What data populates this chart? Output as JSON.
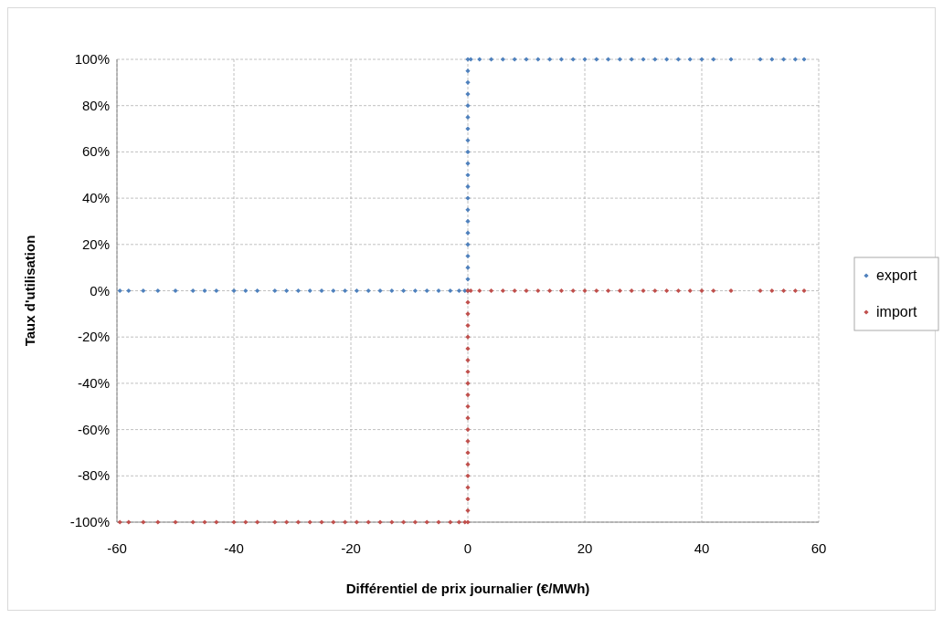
{
  "chart_data": {
    "type": "scatter",
    "xlabel": "Différentiel de prix journalier  (€/MWh)",
    "ylabel": "Taux d'utilisation",
    "xlim": [
      -60,
      60
    ],
    "xticks": [
      -60,
      -40,
      -20,
      0,
      20,
      40,
      60
    ],
    "ylim": [
      -100,
      100
    ],
    "yticks": [
      {
        "value": -100,
        "label": "-100%"
      },
      {
        "value": -80,
        "label": "-80%"
      },
      {
        "value": -60,
        "label": "-60%"
      },
      {
        "value": -40,
        "label": "-40%"
      },
      {
        "value": -20,
        "label": "-20%"
      },
      {
        "value": 0,
        "label": "0%"
      },
      {
        "value": 20,
        "label": "20%"
      },
      {
        "value": 40,
        "label": "40%"
      },
      {
        "value": 60,
        "label": "60%"
      },
      {
        "value": 80,
        "label": "80%"
      },
      {
        "value": 100,
        "label": "100%"
      }
    ],
    "grid": true,
    "legend": "right",
    "marker": "diamond",
    "series": [
      {
        "name": "export",
        "color": "#4f81bd",
        "x": [
          -59.5,
          -58,
          -55.5,
          -53,
          -50,
          -47,
          -45,
          -43,
          -40,
          -38,
          -36,
          -33,
          -31,
          -29,
          -27,
          -25,
          -23,
          -21,
          -19,
          -17,
          -15,
          -13,
          -11,
          -9,
          -7,
          -5,
          -3,
          -1.5,
          -0.5,
          0,
          0,
          0,
          0,
          0,
          0,
          0,
          0,
          0,
          0,
          0,
          0,
          0,
          0,
          0,
          0,
          0,
          0,
          0,
          0,
          0,
          0.5,
          2,
          4,
          6,
          8,
          10,
          12,
          14,
          16,
          18,
          20,
          22,
          24,
          26,
          28,
          30,
          32,
          34,
          36,
          38,
          40,
          42,
          45,
          50,
          52,
          54,
          56,
          57.5
        ],
        "values": [
          0,
          0,
          0,
          0,
          0,
          0,
          0,
          0,
          0,
          0,
          0,
          0,
          0,
          0,
          0,
          0,
          0,
          0,
          0,
          0,
          0,
          0,
          0,
          0,
          0,
          0,
          0,
          0,
          0,
          0,
          5,
          10,
          15,
          20,
          25,
          30,
          35,
          40,
          45,
          50,
          55,
          60,
          65,
          70,
          75,
          80,
          85,
          90,
          95,
          100,
          100,
          100,
          100,
          100,
          100,
          100,
          100,
          100,
          100,
          100,
          100,
          100,
          100,
          100,
          100,
          100,
          100,
          100,
          100,
          100,
          100,
          100,
          100,
          100,
          100,
          100,
          100,
          100
        ]
      },
      {
        "name": "import",
        "color": "#c0504d",
        "x": [
          -59.5,
          -58,
          -55.5,
          -53,
          -50,
          -47,
          -45,
          -43,
          -40,
          -38,
          -36,
          -33,
          -31,
          -29,
          -27,
          -25,
          -23,
          -21,
          -19,
          -17,
          -15,
          -13,
          -11,
          -9,
          -7,
          -5,
          -3,
          -1.5,
          -0.5,
          0,
          0,
          0,
          0,
          0,
          0,
          0,
          0,
          0,
          0,
          0,
          0,
          0,
          0,
          0,
          0,
          0,
          0,
          0,
          0,
          0,
          0.5,
          2,
          4,
          6,
          8,
          10,
          12,
          14,
          16,
          18,
          20,
          22,
          24,
          26,
          28,
          30,
          32,
          34,
          36,
          38,
          40,
          42,
          45,
          50,
          52,
          54,
          56,
          57.5
        ],
        "values": [
          -100,
          -100,
          -100,
          -100,
          -100,
          -100,
          -100,
          -100,
          -100,
          -100,
          -100,
          -100,
          -100,
          -100,
          -100,
          -100,
          -100,
          -100,
          -100,
          -100,
          -100,
          -100,
          -100,
          -100,
          -100,
          -100,
          -100,
          -100,
          -100,
          -100,
          -95,
          -90,
          -85,
          -80,
          -75,
          -70,
          -65,
          -60,
          -55,
          -50,
          -45,
          -40,
          -35,
          -30,
          -25,
          -20,
          -15,
          -10,
          -5,
          0,
          0,
          0,
          0,
          0,
          0,
          0,
          0,
          0,
          0,
          0,
          0,
          0,
          0,
          0,
          0,
          0,
          0,
          0,
          0,
          0,
          0,
          0,
          0,
          0,
          0,
          0,
          0,
          0
        ]
      }
    ]
  }
}
